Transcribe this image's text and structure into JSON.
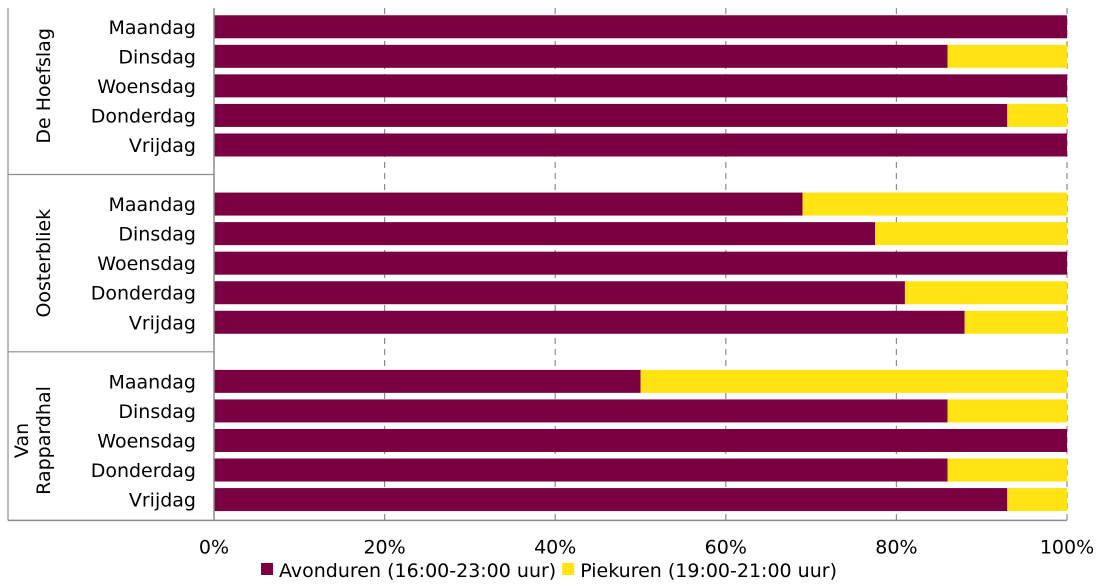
{
  "chart_data": {
    "type": "bar",
    "orientation": "horizontal",
    "stacked": "percent",
    "groups": [
      {
        "name": "De Hoefslag",
        "days": [
          "Maandag",
          "Dinsdag",
          "Woensdag",
          "Donderdag",
          "Vrijdag"
        ],
        "avonduren": [
          100,
          86,
          100,
          93,
          100
        ],
        "piekuren": [
          0,
          14,
          0,
          7,
          0
        ]
      },
      {
        "name": "Oosterbliek",
        "days": [
          "Maandag",
          "Dinsdag",
          "Woensdag",
          "Donderdag",
          "Vrijdag"
        ],
        "avonduren": [
          69,
          77.5,
          100,
          81,
          88
        ],
        "piekuren": [
          31,
          22.5,
          0,
          19,
          12
        ]
      },
      {
        "name": "Van Rappardhal",
        "days": [
          "Maandag",
          "Dinsdag",
          "Woensdag",
          "Donderdag",
          "Vrijdag"
        ],
        "avonduren": [
          50,
          86,
          100,
          86,
          93
        ],
        "piekuren": [
          50,
          14,
          0,
          14,
          7
        ]
      }
    ],
    "series": [
      {
        "name": "Avonduren (16:00-23:00 uur)",
        "color": "#7b0041"
      },
      {
        "name": "Piekuren (19:00-21:00 uur)",
        "color": "#ffe312"
      }
    ],
    "xticks": [
      "0%",
      "20%",
      "40%",
      "60%",
      "80%",
      "100%"
    ],
    "xlim": [
      0,
      100
    ],
    "grid": "vertical dashed",
    "legend_position": "bottom"
  }
}
